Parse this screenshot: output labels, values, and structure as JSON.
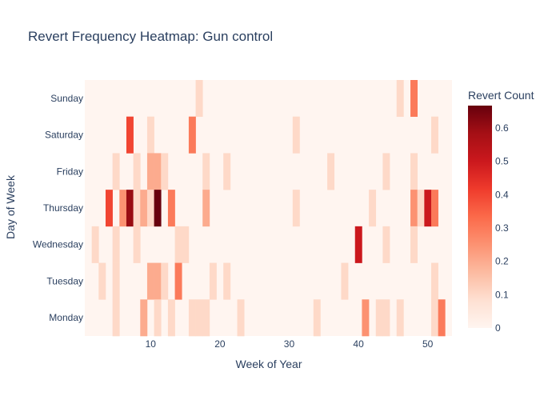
{
  "chart_data": {
    "type": "heatmap",
    "title": "Revert Frequency Heatmap: Gun control",
    "xlabel": "Week of Year",
    "ylabel": "Day of Week",
    "x_ticks": [
      10,
      20,
      30,
      40,
      50
    ],
    "y_categories": [
      "Monday",
      "Tuesday",
      "Wednesday",
      "Thursday",
      "Friday",
      "Saturday",
      "Sunday"
    ],
    "xlim": [
      0.5,
      53.5
    ],
    "colorbar": {
      "title": "Revert Count",
      "range": [
        0,
        0.667
      ],
      "ticks": [
        0,
        0.1,
        0.2,
        0.3,
        0.4,
        0.5,
        0.6
      ],
      "colorscale": [
        "#fff5f0",
        "#fee0d2",
        "#fcbba1",
        "#fc9272",
        "#fb6a4a",
        "#ef3b2c",
        "#cb181d",
        "#a50f15",
        "#67000d"
      ]
    },
    "cells": [
      {
        "day": "Sunday",
        "week": 17,
        "value": 0.1
      },
      {
        "day": "Sunday",
        "week": 46,
        "value": 0.1
      },
      {
        "day": "Sunday",
        "week": 48,
        "value": 0.3
      },
      {
        "day": "Saturday",
        "week": 7,
        "value": 0.4
      },
      {
        "day": "Saturday",
        "week": 10,
        "value": 0.1
      },
      {
        "day": "Saturday",
        "week": 16,
        "value": 0.3
      },
      {
        "day": "Saturday",
        "week": 31,
        "value": 0.1
      },
      {
        "day": "Saturday",
        "week": 51,
        "value": 0.1
      },
      {
        "day": "Friday",
        "week": 5,
        "value": 0.1
      },
      {
        "day": "Friday",
        "week": 8,
        "value": 0.1
      },
      {
        "day": "Friday",
        "week": 10,
        "value": 0.2
      },
      {
        "day": "Friday",
        "week": 11,
        "value": 0.2
      },
      {
        "day": "Friday",
        "week": 12,
        "value": 0.1
      },
      {
        "day": "Friday",
        "week": 18,
        "value": 0.1
      },
      {
        "day": "Friday",
        "week": 21,
        "value": 0.1
      },
      {
        "day": "Friday",
        "week": 36,
        "value": 0.1
      },
      {
        "day": "Friday",
        "week": 44,
        "value": 0.1
      },
      {
        "day": "Friday",
        "week": 48,
        "value": 0.1
      },
      {
        "day": "Thursday",
        "week": 4,
        "value": 0.4
      },
      {
        "day": "Thursday",
        "week": 6,
        "value": 0.25
      },
      {
        "day": "Thursday",
        "week": 7,
        "value": 0.6
      },
      {
        "day": "Thursday",
        "week": 8,
        "value": 0.1
      },
      {
        "day": "Thursday",
        "week": 9,
        "value": 0.2
      },
      {
        "day": "Thursday",
        "week": 10,
        "value": 0.1
      },
      {
        "day": "Thursday",
        "week": 11,
        "value": 0.667
      },
      {
        "day": "Thursday",
        "week": 13,
        "value": 0.3
      },
      {
        "day": "Thursday",
        "week": 18,
        "value": 0.2
      },
      {
        "day": "Thursday",
        "week": 31,
        "value": 0.1
      },
      {
        "day": "Thursday",
        "week": 42,
        "value": 0.1
      },
      {
        "day": "Thursday",
        "week": 48,
        "value": 0.25
      },
      {
        "day": "Thursday",
        "week": 49,
        "value": 0.1
      },
      {
        "day": "Thursday",
        "week": 50,
        "value": 0.5
      },
      {
        "day": "Thursday",
        "week": 51,
        "value": 0.3
      },
      {
        "day": "Wednesday",
        "week": 2,
        "value": 0.1
      },
      {
        "day": "Wednesday",
        "week": 5,
        "value": 0.1
      },
      {
        "day": "Wednesday",
        "week": 8,
        "value": 0.1
      },
      {
        "day": "Wednesday",
        "week": 14,
        "value": 0.1
      },
      {
        "day": "Wednesday",
        "week": 15,
        "value": 0.1
      },
      {
        "day": "Wednesday",
        "week": 40,
        "value": 0.5
      },
      {
        "day": "Wednesday",
        "week": 44,
        "value": 0.1
      },
      {
        "day": "Wednesday",
        "week": 48,
        "value": 0.1
      },
      {
        "day": "Tuesday",
        "week": 3,
        "value": 0.1
      },
      {
        "day": "Tuesday",
        "week": 5,
        "value": 0.1
      },
      {
        "day": "Tuesday",
        "week": 10,
        "value": 0.2
      },
      {
        "day": "Tuesday",
        "week": 11,
        "value": 0.2
      },
      {
        "day": "Tuesday",
        "week": 12,
        "value": 0.1
      },
      {
        "day": "Tuesday",
        "week": 14,
        "value": 0.3
      },
      {
        "day": "Tuesday",
        "week": 19,
        "value": 0.1
      },
      {
        "day": "Tuesday",
        "week": 21,
        "value": 0.1
      },
      {
        "day": "Tuesday",
        "week": 38,
        "value": 0.1
      },
      {
        "day": "Tuesday",
        "week": 51,
        "value": 0.1
      },
      {
        "day": "Monday",
        "week": 5,
        "value": 0.1
      },
      {
        "day": "Monday",
        "week": 9,
        "value": 0.2
      },
      {
        "day": "Monday",
        "week": 11,
        "value": 0.1
      },
      {
        "day": "Monday",
        "week": 13,
        "value": 0.1
      },
      {
        "day": "Monday",
        "week": 16,
        "value": 0.1
      },
      {
        "day": "Monday",
        "week": 17,
        "value": 0.1
      },
      {
        "day": "Monday",
        "week": 18,
        "value": 0.1
      },
      {
        "day": "Monday",
        "week": 23,
        "value": 0.1
      },
      {
        "day": "Monday",
        "week": 34,
        "value": 0.1
      },
      {
        "day": "Monday",
        "week": 41,
        "value": 0.25
      },
      {
        "day": "Monday",
        "week": 43,
        "value": 0.1
      },
      {
        "day": "Monday",
        "week": 44,
        "value": 0.1
      },
      {
        "day": "Monday",
        "week": 46,
        "value": 0.1
      },
      {
        "day": "Monday",
        "week": 51,
        "value": 0.1
      },
      {
        "day": "Monday",
        "week": 52,
        "value": 0.3
      }
    ]
  }
}
